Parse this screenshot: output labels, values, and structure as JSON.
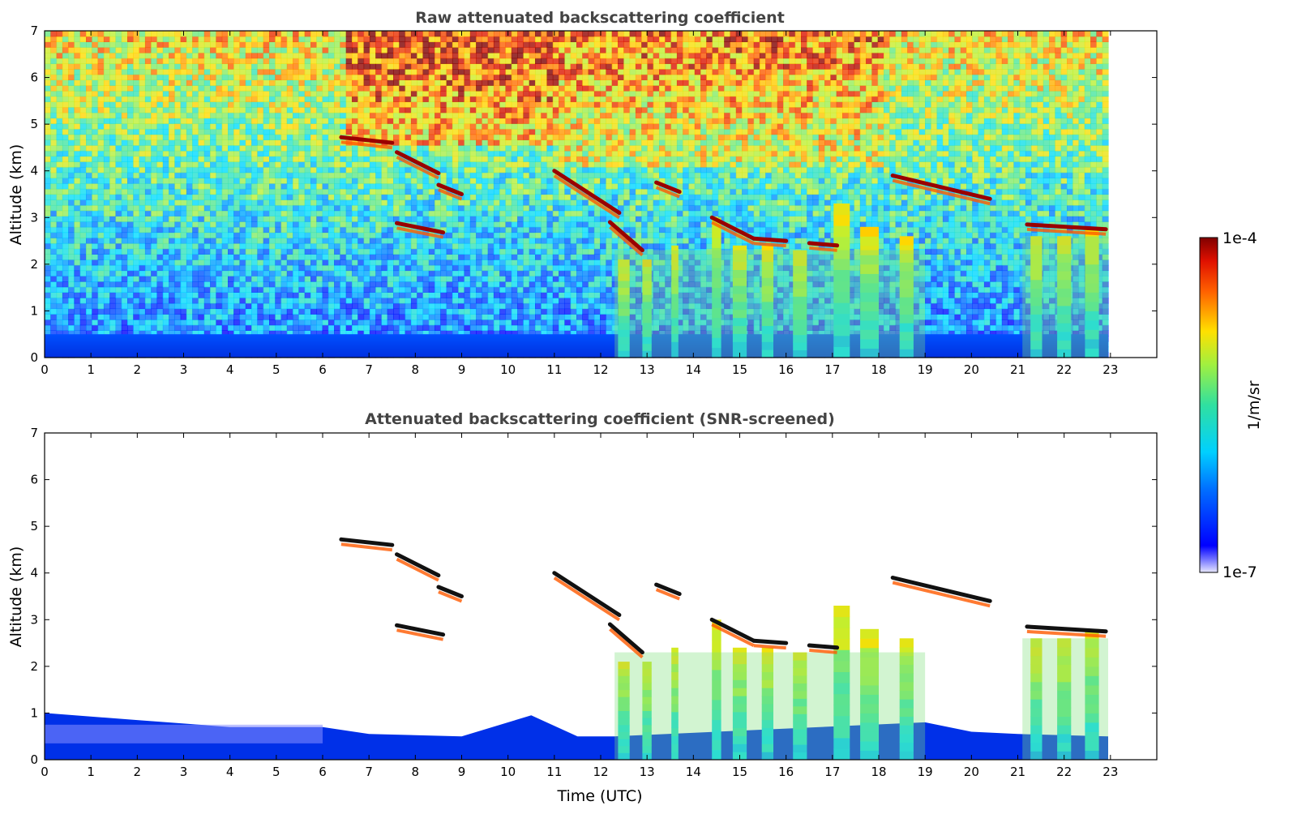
{
  "chart_data": [
    {
      "type": "heatmap",
      "title": "Raw attenuated backscattering coefficient",
      "ylabel": "Altitude (km)",
      "xlabel": "",
      "xlim": [
        0,
        24
      ],
      "ylim": [
        0,
        7
      ],
      "x_ticks": [
        "0",
        "1",
        "2",
        "3",
        "4",
        "5",
        "6",
        "7",
        "8",
        "9",
        "10",
        "11",
        "12",
        "13",
        "14",
        "15",
        "16",
        "17",
        "18",
        "19",
        "20",
        "21",
        "22",
        "23"
      ],
      "y_ticks": [
        "0",
        "1",
        "2",
        "3",
        "4",
        "5",
        "6",
        "7"
      ],
      "data_end_time": 22.95,
      "screened": false
    },
    {
      "type": "heatmap",
      "title": "Attenuated backscattering coefficient (SNR-screened)",
      "ylabel": "Altitude (km)",
      "xlabel": "Time (UTC)",
      "xlim": [
        0,
        24
      ],
      "ylim": [
        0,
        7
      ],
      "x_ticks": [
        "0",
        "1",
        "2",
        "3",
        "4",
        "5",
        "6",
        "7",
        "8",
        "9",
        "10",
        "11",
        "12",
        "13",
        "14",
        "15",
        "16",
        "17",
        "18",
        "19",
        "20",
        "21",
        "22",
        "23"
      ],
      "y_ticks": [
        "0",
        "1",
        "2",
        "3",
        "4",
        "5",
        "6",
        "7"
      ],
      "data_end_time": 22.95,
      "screened": true
    }
  ],
  "colorbar": {
    "label": "1/m/sr",
    "max_label": "1e-4",
    "min_label": "1e-7",
    "scale": "log",
    "colormap": "jet"
  },
  "features": {
    "cloud_layers": [
      {
        "t0": 6.4,
        "t1": 7.5,
        "h0": 4.72,
        "h1": 4.6
      },
      {
        "t0": 7.6,
        "t1": 8.5,
        "h0": 4.4,
        "h1": 3.95
      },
      {
        "t0": 8.5,
        "t1": 9.0,
        "h0": 3.7,
        "h1": 3.5
      },
      {
        "t0": 7.6,
        "t1": 8.6,
        "h0": 2.88,
        "h1": 2.68
      },
      {
        "t0": 11.0,
        "t1": 12.4,
        "h0": 4.0,
        "h1": 3.1
      },
      {
        "t0": 12.2,
        "t1": 12.9,
        "h0": 2.9,
        "h1": 2.3
      },
      {
        "t0": 13.2,
        "t1": 13.7,
        "h0": 3.75,
        "h1": 3.55
      },
      {
        "t0": 14.4,
        "t1": 15.3,
        "h0": 3.0,
        "h1": 2.55
      },
      {
        "t0": 15.3,
        "t1": 16.0,
        "h0": 2.55,
        "h1": 2.5
      },
      {
        "t0": 16.5,
        "t1": 17.1,
        "h0": 2.45,
        "h1": 2.4
      },
      {
        "t0": 18.3,
        "t1": 20.4,
        "h0": 3.9,
        "h1": 3.4
      },
      {
        "t0": 21.2,
        "t1": 22.9,
        "h0": 2.85,
        "h1": 2.75
      }
    ],
    "fall_streaks": [
      {
        "t": 12.5,
        "top": 2.1,
        "w": 0.25
      },
      {
        "t": 13.0,
        "top": 2.1,
        "w": 0.2
      },
      {
        "t": 13.6,
        "top": 2.4,
        "w": 0.15
      },
      {
        "t": 14.5,
        "top": 3.0,
        "w": 0.2
      },
      {
        "t": 15.0,
        "top": 2.4,
        "w": 0.3
      },
      {
        "t": 15.6,
        "top": 2.4,
        "w": 0.25
      },
      {
        "t": 16.3,
        "top": 2.3,
        "w": 0.3
      },
      {
        "t": 17.2,
        "top": 3.3,
        "w": 0.35
      },
      {
        "t": 17.8,
        "top": 2.8,
        "w": 0.4
      },
      {
        "t": 18.6,
        "top": 2.6,
        "w": 0.3
      },
      {
        "t": 21.4,
        "top": 2.6,
        "w": 0.25
      },
      {
        "t": 22.0,
        "top": 2.6,
        "w": 0.3
      },
      {
        "t": 22.6,
        "top": 2.8,
        "w": 0.3
      }
    ]
  }
}
